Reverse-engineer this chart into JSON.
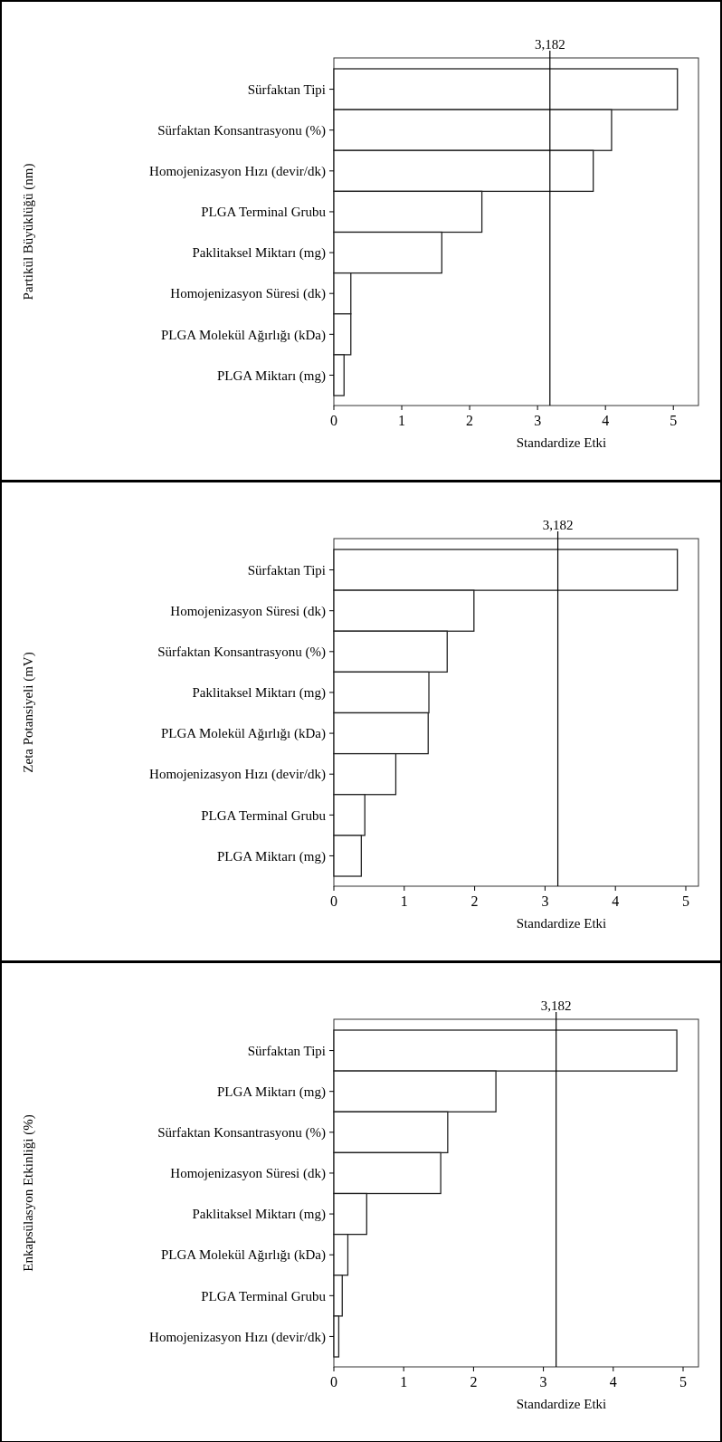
{
  "chart_data": [
    {
      "type": "bar",
      "orientation": "horizontal",
      "ylabel": "Partikül Büyüklüğü (nm)",
      "xlabel": "Standardize Etki",
      "categories": [
        "Sürfaktan Tipi",
        "Sürfaktan Konsantrasyonu (%)",
        "Homojenizasyon Hızı (devir/dk)",
        "PLGA Terminal Grubu",
        "Paklitaksel Miktarı (mg)",
        "Homojenizasyon Süresi (dk)",
        "PLGA Molekül Ağırlığı (kDa)",
        "PLGA Miktarı (mg)"
      ],
      "values": [
        5.06,
        4.09,
        3.82,
        2.18,
        1.59,
        0.25,
        0.25,
        0.15
      ],
      "color": "#ffffff",
      "xlim": [
        0,
        5.37
      ],
      "xticks": [
        0,
        1,
        2,
        3,
        4,
        5
      ],
      "ref_lines": [
        {
          "axis": "x",
          "value": 3.182,
          "label": "3,182",
          "color": "#000000"
        }
      ]
    },
    {
      "type": "bar",
      "orientation": "horizontal",
      "ylabel": "Zeta Potansiyeli (mV)",
      "xlabel": "Standardize Etki",
      "categories": [
        "Sürfaktan Tipi",
        "Homojenizasyon Süresi (dk)",
        "Sürfaktan Konsantrasyonu (%)",
        "Paklitaksel Miktarı (mg)",
        "PLGA Molekül Ağırlığı (kDa)",
        "Homojenizasyon Hızı (devir/dk)",
        "PLGA Terminal Grubu",
        "PLGA Miktarı (mg)"
      ],
      "values": [
        4.88,
        1.99,
        1.61,
        1.35,
        1.34,
        0.88,
        0.44,
        0.39
      ],
      "color": "#ffffff",
      "xlim": [
        0,
        5.18
      ],
      "xticks": [
        0,
        1,
        2,
        3,
        4,
        5
      ],
      "ref_lines": [
        {
          "axis": "x",
          "value": 3.182,
          "label": "3,182",
          "color": "#000000"
        }
      ]
    },
    {
      "type": "bar",
      "orientation": "horizontal",
      "ylabel": "Enkapsülasyon Etkinliği (%)",
      "xlabel": "Standardize Etki",
      "categories": [
        "Sürfaktan Tipi",
        "PLGA Miktarı (mg)",
        "Sürfaktan Konsantrasyonu (%)",
        "Homojenizasyon Süresi (dk)",
        "Paklitaksel Miktarı (mg)",
        "PLGA Molekül Ağırlığı (kDa)",
        "PLGA Terminal Grubu",
        "Homojenizasyon Hızı (devir/dk)"
      ],
      "values": [
        4.91,
        2.32,
        1.63,
        1.53,
        0.47,
        0.2,
        0.12,
        0.07
      ],
      "color": "#ffffff",
      "xlim": [
        0,
        5.22
      ],
      "xticks": [
        0,
        1,
        2,
        3,
        4,
        5
      ],
      "ref_lines": [
        {
          "axis": "x",
          "value": 3.182,
          "label": "3,182",
          "color": "#000000"
        }
      ]
    }
  ]
}
